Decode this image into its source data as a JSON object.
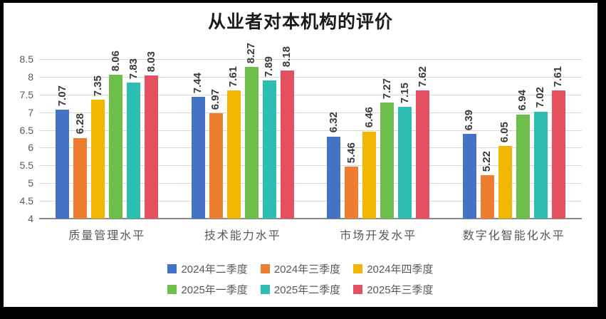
{
  "chart_data": {
    "type": "bar",
    "title": "从业者对本机构的评价",
    "categories": [
      "质量管理水平",
      "技术能力水平",
      "市场开发水平",
      "数字化智能化水平"
    ],
    "series": [
      {
        "name": "2024年二季度",
        "color": "#4472C4",
        "values": [
          7.07,
          7.44,
          6.32,
          6.39
        ]
      },
      {
        "name": "2024年三季度",
        "color": "#ED7D31",
        "values": [
          6.28,
          6.97,
          5.46,
          5.22
        ]
      },
      {
        "name": "2024年四季度",
        "color": "#F2B500",
        "values": [
          7.35,
          7.61,
          6.46,
          6.05
        ]
      },
      {
        "name": "2025年一季度",
        "color": "#6EBE4B",
        "values": [
          8.06,
          8.27,
          7.27,
          6.94
        ]
      },
      {
        "name": "2025年二季度",
        "color": "#2CBDB3",
        "values": [
          7.83,
          7.89,
          7.15,
          7.02
        ]
      },
      {
        "name": "2025年三季度",
        "color": "#E4505F",
        "values": [
          8.03,
          8.18,
          7.62,
          7.61
        ]
      }
    ],
    "ylim": [
      4,
      8.5
    ],
    "ytick_step": 0.5,
    "yticks": [
      8.5,
      8,
      7.5,
      7,
      6.5,
      6,
      5.5,
      5,
      4.5,
      4
    ],
    "xlabel": "",
    "ylabel": "",
    "grid": true,
    "data_labels": true,
    "data_label_rotation": -90,
    "legend_position": "bottom",
    "legend_items_per_row": 3,
    "colors": {
      "gridline": "#D9D9D9",
      "axis_line": "#8A8A8A",
      "tick_text": "#595959",
      "data_label_text": "#3A3A3A",
      "title_text": "#1A1A1A"
    }
  }
}
